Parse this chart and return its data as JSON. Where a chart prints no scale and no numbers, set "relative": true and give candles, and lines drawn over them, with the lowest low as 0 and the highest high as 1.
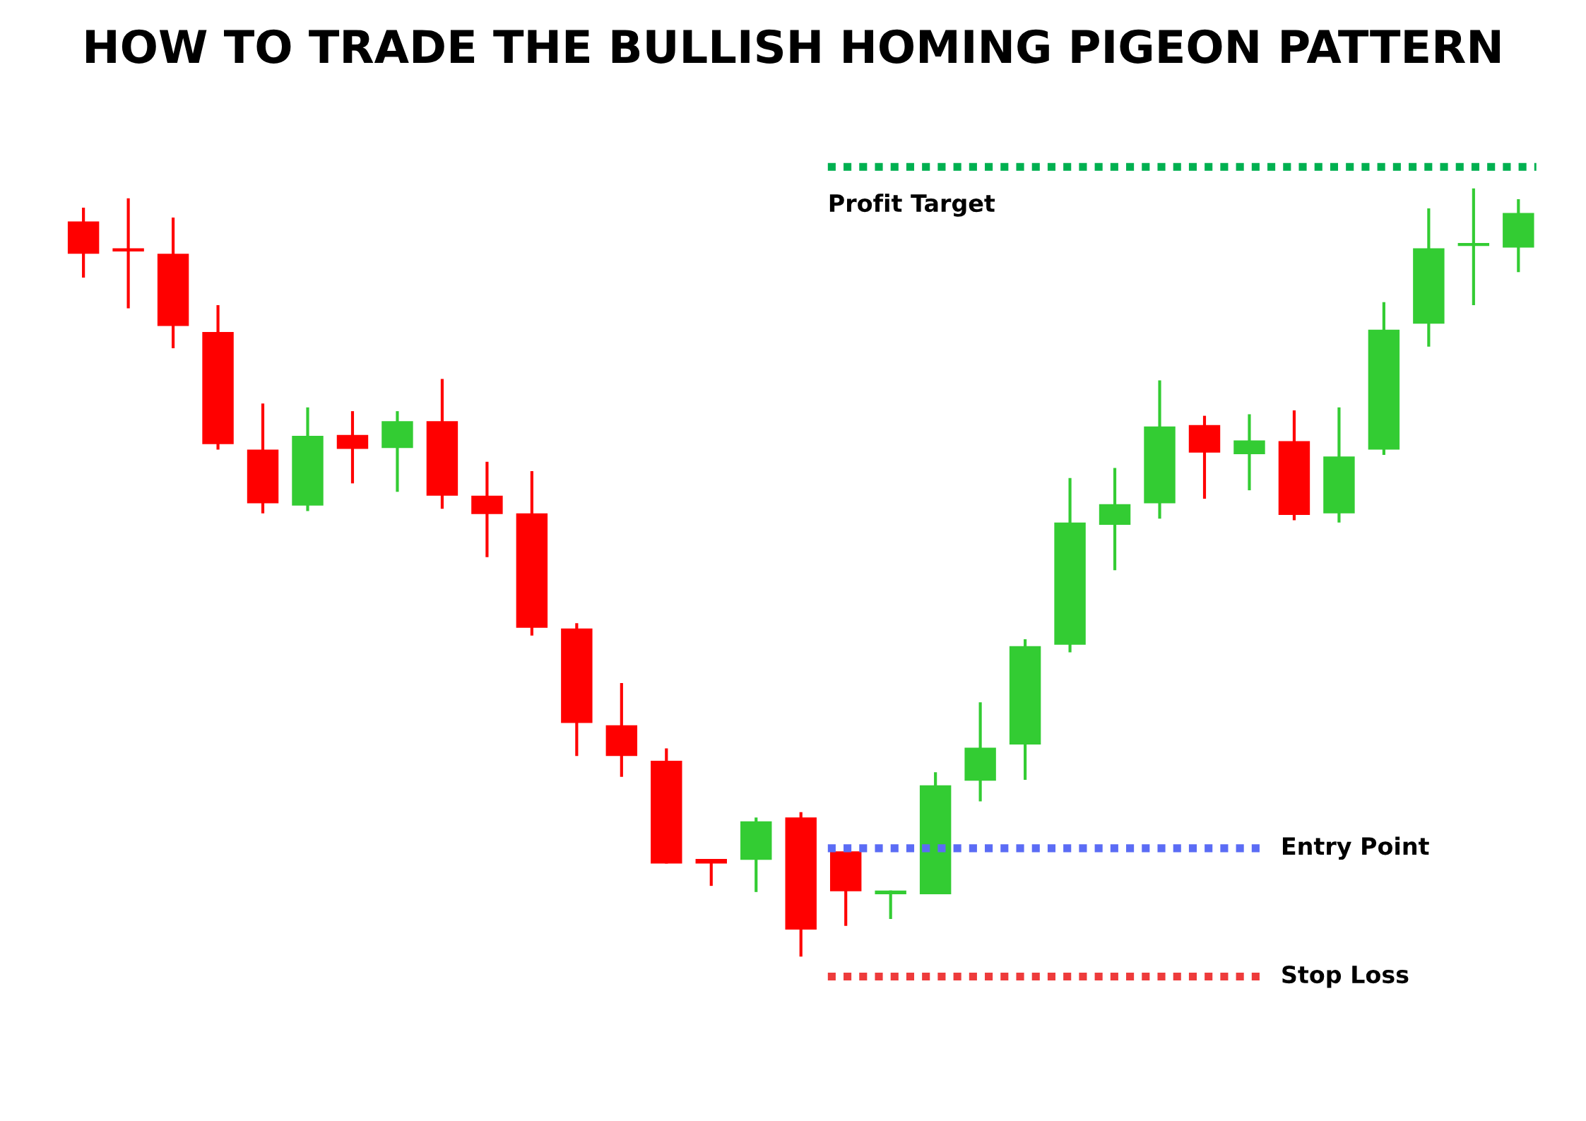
{
  "chart_data": {
    "type": "candlestick",
    "title": "HOW TO TRADE THE BULLISH HOMING PIGEON PATTERN",
    "relative": true,
    "legend": false,
    "categories": [
      null,
      null,
      null,
      null,
      null,
      null,
      null,
      null,
      null,
      null,
      null,
      null,
      null,
      null,
      null,
      null,
      null,
      null,
      null,
      null,
      null,
      null,
      null,
      null,
      null,
      null,
      null,
      null,
      null,
      null,
      null,
      null,
      null
    ],
    "ohlc": [
      [
        0.957,
        0.975,
        0.884,
        0.915
      ],
      [
        0.921,
        0.987,
        0.844,
        0.918
      ],
      [
        0.915,
        0.962,
        0.792,
        0.821
      ],
      [
        0.813,
        0.848,
        0.66,
        0.667
      ],
      [
        0.66,
        0.72,
        0.577,
        0.59
      ],
      [
        0.587,
        0.715,
        0.58,
        0.678
      ],
      [
        0.679,
        0.71,
        0.616,
        0.661
      ],
      [
        0.662,
        0.71,
        0.605,
        0.697
      ],
      [
        0.697,
        0.752,
        0.583,
        0.6
      ],
      [
        0.6,
        0.644,
        0.52,
        0.576
      ],
      [
        0.577,
        0.632,
        0.418,
        0.428
      ],
      [
        0.427,
        0.434,
        0.261,
        0.304
      ],
      [
        0.301,
        0.356,
        0.234,
        0.261
      ],
      [
        0.255,
        0.271,
        0.121,
        0.121
      ],
      [
        0.127,
        0.127,
        0.092,
        0.121
      ],
      [
        0.126,
        0.181,
        0.084,
        0.176
      ],
      [
        0.181,
        0.188,
        0.0,
        0.035
      ],
      [
        0.137,
        0.137,
        0.04,
        0.085
      ],
      [
        0.081,
        0.086,
        0.049,
        0.086
      ],
      [
        0.081,
        0.24,
        0.081,
        0.223
      ],
      [
        0.229,
        0.331,
        0.202,
        0.272
      ],
      [
        0.276,
        0.413,
        0.23,
        0.404
      ],
      [
        0.406,
        0.623,
        0.396,
        0.565
      ],
      [
        0.562,
        0.636,
        0.503,
        0.589
      ],
      [
        0.59,
        0.75,
        0.57,
        0.69
      ],
      [
        0.692,
        0.704,
        0.596,
        0.656
      ],
      [
        0.654,
        0.706,
        0.607,
        0.672
      ],
      [
        0.671,
        0.711,
        0.568,
        0.575
      ],
      [
        0.577,
        0.715,
        0.565,
        0.651
      ],
      [
        0.66,
        0.852,
        0.653,
        0.816
      ],
      [
        0.824,
        0.974,
        0.794,
        0.922
      ],
      [
        0.925,
        1.0,
        0.848,
        0.929
      ],
      [
        0.923,
        0.986,
        0.891,
        0.968
      ]
    ],
    "colors": [
      "#ff0000",
      "#ff0000",
      "#ff0000",
      "#ff0000",
      "#ff0000",
      "#33cc33",
      "#ff0000",
      "#33cc33",
      "#ff0000",
      "#ff0000",
      "#ff0000",
      "#ff0000",
      "#ff0000",
      "#ff0000",
      "#ff0000",
      "#33cc33",
      "#ff0000",
      "#ff0000",
      "#33cc33",
      "#33cc33",
      "#33cc33",
      "#33cc33",
      "#33cc33",
      "#33cc33",
      "#33cc33",
      "#ff0000",
      "#33cc33",
      "#ff0000",
      "#33cc33",
      "#33cc33",
      "#33cc33",
      "#33cc33",
      "#33cc33"
    ],
    "ref_lines": [
      {
        "axis": "y",
        "value": 1.028,
        "label": "Profit Target",
        "color": "#00b050",
        "line_style": "dotted"
      },
      {
        "axis": "y",
        "value": 0.141,
        "label": "Entry Point",
        "color": "#5b6cf5",
        "line_style": "dotted"
      },
      {
        "axis": "y",
        "value": -0.026,
        "label": "Stop Loss",
        "color": "#ee3b3b",
        "line_style": "dotted"
      }
    ]
  }
}
